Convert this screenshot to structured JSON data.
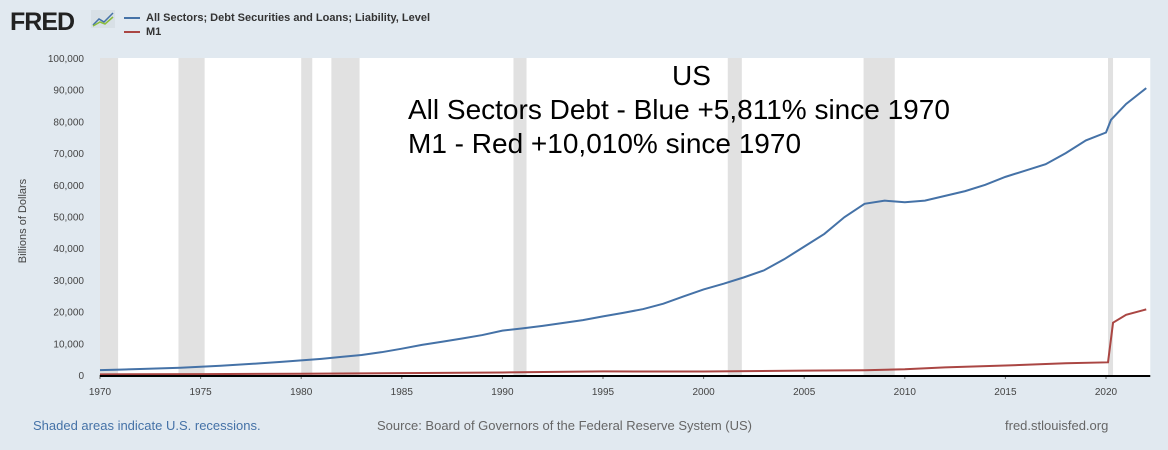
{
  "header": {
    "logo": "FRED",
    "legend": [
      {
        "label": "All Sectors; Debt Securities and Loans; Liability, Level",
        "color": "#4572a7"
      },
      {
        "label": "M1",
        "color": "#aa4643"
      }
    ]
  },
  "annotations": {
    "title": "US",
    "line1": "All Sectors Debt - Blue +5,811% since 1970",
    "line2": "M1 - Red +10,010% since 1970"
  },
  "footer": {
    "recessions": "Shaded areas indicate U.S. recessions.",
    "source": "Source: Board of Governors of the Federal Reserve System (US)",
    "site": "fred.stlouisfed.org"
  },
  "chart_data": {
    "type": "line",
    "ylabel": "Billions of Dollars",
    "xlim": [
      1970,
      2022.2
    ],
    "ylim": [
      0,
      100000
    ],
    "xticks": [
      "1970",
      "1975",
      "1980",
      "1985",
      "1990",
      "1995",
      "2000",
      "2005",
      "2010",
      "2015",
      "2020"
    ],
    "yticks": [
      "0",
      "10,000",
      "20,000",
      "30,000",
      "40,000",
      "50,000",
      "60,000",
      "70,000",
      "80,000",
      "90,000",
      "100,000"
    ],
    "recessions": [
      [
        1969.9,
        1970.9
      ],
      [
        1973.9,
        1975.2
      ],
      [
        1980.0,
        1980.55
      ],
      [
        1981.5,
        1982.9
      ],
      [
        1990.55,
        1991.2
      ],
      [
        2001.2,
        2001.9
      ],
      [
        2007.95,
        2009.5
      ],
      [
        2020.1,
        2020.35
      ]
    ],
    "series": [
      {
        "name": "All Sectors; Debt Securities and Loans; Liability, Level",
        "color": "#4572a7",
        "x": [
          1970,
          1971,
          1972,
          1973,
          1974,
          1975,
          1976,
          1977,
          1978,
          1979,
          1980,
          1981,
          1982,
          1983,
          1984,
          1985,
          1986,
          1987,
          1988,
          1989,
          1990,
          1991,
          1992,
          1993,
          1994,
          1995,
          1996,
          1997,
          1998,
          1999,
          2000,
          2001,
          2002,
          2003,
          2004,
          2005,
          2006,
          2007,
          2008,
          2009,
          2010,
          2011,
          2012,
          2013,
          2014,
          2015,
          2016,
          2017,
          2018,
          2019,
          2020,
          2020.25,
          2021,
          2022
        ],
        "values": [
          1550,
          1700,
          1900,
          2100,
          2300,
          2600,
          2900,
          3300,
          3700,
          4150,
          4600,
          5100,
          5700,
          6300,
          7200,
          8300,
          9500,
          10500,
          11500,
          12600,
          14000,
          14700,
          15500,
          16400,
          17300,
          18500,
          19600,
          20800,
          22500,
          24800,
          27000,
          28800,
          30800,
          33000,
          36500,
          40500,
          44500,
          49800,
          54000,
          55000,
          54500,
          55000,
          56500,
          58000,
          60000,
          62500,
          64500,
          66500,
          70000,
          74000,
          76500,
          80500,
          85500,
          90500
        ]
      },
      {
        "name": "M1",
        "color": "#aa4643",
        "x": [
          1970,
          1975,
          1980,
          1985,
          1990,
          1995,
          2000,
          2005,
          2008,
          2010,
          2012,
          2015,
          2018,
          2020.1,
          2020.35,
          2021,
          2022
        ],
        "values": [
          214,
          290,
          400,
          600,
          800,
          1130,
          1100,
          1370,
          1500,
          1800,
          2400,
          3000,
          3700,
          4000,
          16500,
          19000,
          20700
        ]
      }
    ]
  }
}
